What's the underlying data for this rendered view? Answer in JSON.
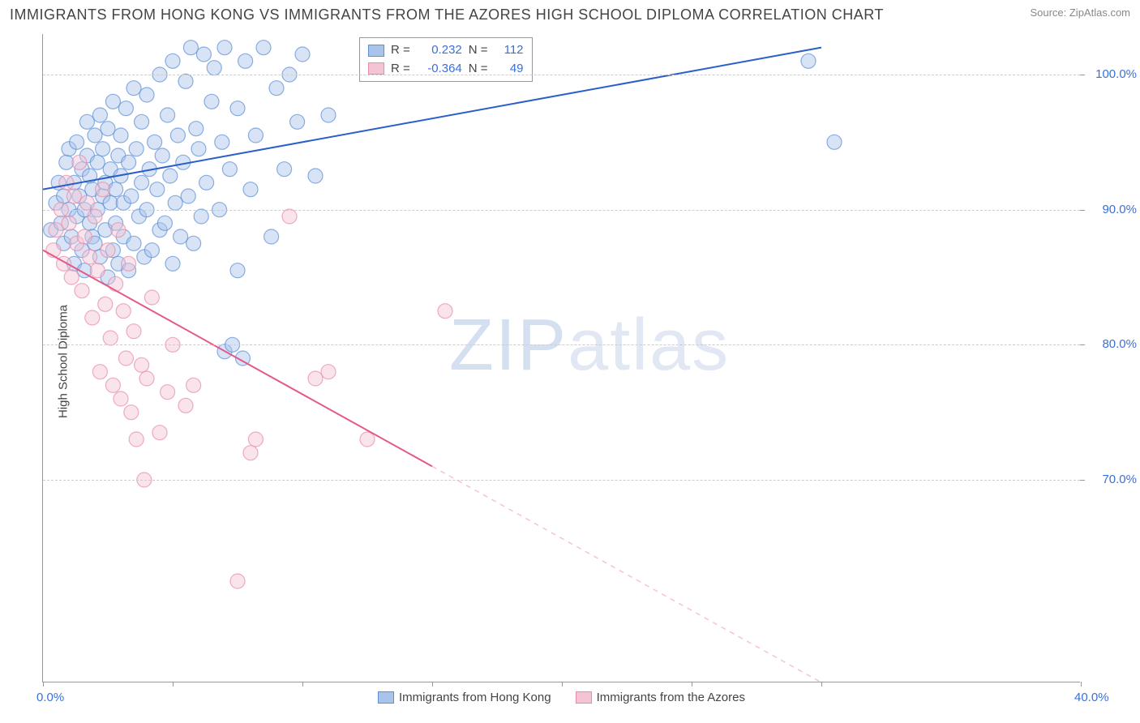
{
  "title": "IMMIGRANTS FROM HONG KONG VS IMMIGRANTS FROM THE AZORES HIGH SCHOOL DIPLOMA CORRELATION CHART",
  "source": "Source: ZipAtlas.com",
  "y_label": "High School Diploma",
  "watermark_1": "ZIP",
  "watermark_2": "atlas",
  "chart": {
    "type": "scatter_with_regression",
    "x_min": 0.0,
    "x_max": 40.0,
    "y_min": 55.0,
    "y_max": 103.0,
    "x_ticks": [
      0.0,
      5.0,
      10.0,
      15.0,
      20.0,
      25.0,
      30.0,
      40.0
    ],
    "x_tick_labels": {
      "0": "0.0%",
      "40": "40.0%"
    },
    "y_ticks": [
      70.0,
      80.0,
      90.0,
      100.0
    ],
    "y_tick_labels": {
      "70": "70.0%",
      "80": "80.0%",
      "90": "90.0%",
      "100": "100.0%"
    },
    "grid_color": "#cccccc",
    "axis_color": "#999999",
    "label_color": "#3b6fd9",
    "background_color": "#ffffff",
    "marker_radius": 9,
    "marker_opacity": 0.45,
    "line_width": 2
  },
  "series": [
    {
      "name": "Immigrants from Hong Kong",
      "color_fill": "#a8c4eb",
      "color_stroke": "#5d8fd6",
      "line_color": "#2a5fc7",
      "r_value": "0.232",
      "n_value": "112",
      "regression": {
        "x1": 0.0,
        "y1": 91.5,
        "x2": 30.0,
        "y2": 102.0,
        "dashed_from": null
      },
      "points": [
        [
          0.3,
          88.5
        ],
        [
          0.5,
          90.5
        ],
        [
          0.6,
          92.0
        ],
        [
          0.7,
          89.0
        ],
        [
          0.8,
          91.0
        ],
        [
          0.8,
          87.5
        ],
        [
          0.9,
          93.5
        ],
        [
          1.0,
          90.0
        ],
        [
          1.0,
          94.5
        ],
        [
          1.1,
          88.0
        ],
        [
          1.2,
          86.0
        ],
        [
          1.2,
          92.0
        ],
        [
          1.3,
          89.5
        ],
        [
          1.3,
          95.0
        ],
        [
          1.4,
          91.0
        ],
        [
          1.5,
          93.0
        ],
        [
          1.5,
          87.0
        ],
        [
          1.6,
          85.5
        ],
        [
          1.6,
          90.0
        ],
        [
          1.7,
          94.0
        ],
        [
          1.7,
          96.5
        ],
        [
          1.8,
          89.0
        ],
        [
          1.8,
          92.5
        ],
        [
          1.9,
          88.0
        ],
        [
          1.9,
          91.5
        ],
        [
          2.0,
          95.5
        ],
        [
          2.0,
          87.5
        ],
        [
          2.1,
          93.5
        ],
        [
          2.1,
          90.0
        ],
        [
          2.2,
          86.5
        ],
        [
          2.2,
          97.0
        ],
        [
          2.3,
          91.0
        ],
        [
          2.3,
          94.5
        ],
        [
          2.4,
          88.5
        ],
        [
          2.4,
          92.0
        ],
        [
          2.5,
          85.0
        ],
        [
          2.5,
          96.0
        ],
        [
          2.6,
          90.5
        ],
        [
          2.6,
          93.0
        ],
        [
          2.7,
          87.0
        ],
        [
          2.7,
          98.0
        ],
        [
          2.8,
          91.5
        ],
        [
          2.8,
          89.0
        ],
        [
          2.9,
          94.0
        ],
        [
          2.9,
          86.0
        ],
        [
          3.0,
          92.5
        ],
        [
          3.0,
          95.5
        ],
        [
          3.1,
          88.0
        ],
        [
          3.1,
          90.5
        ],
        [
          3.2,
          97.5
        ],
        [
          3.3,
          93.5
        ],
        [
          3.3,
          85.5
        ],
        [
          3.4,
          91.0
        ],
        [
          3.5,
          87.5
        ],
        [
          3.5,
          99.0
        ],
        [
          3.6,
          94.5
        ],
        [
          3.7,
          89.5
        ],
        [
          3.8,
          96.5
        ],
        [
          3.8,
          92.0
        ],
        [
          3.9,
          86.5
        ],
        [
          4.0,
          90.0
        ],
        [
          4.0,
          98.5
        ],
        [
          4.1,
          93.0
        ],
        [
          4.2,
          87.0
        ],
        [
          4.3,
          95.0
        ],
        [
          4.4,
          91.5
        ],
        [
          4.5,
          88.5
        ],
        [
          4.5,
          100.0
        ],
        [
          4.6,
          94.0
        ],
        [
          4.7,
          89.0
        ],
        [
          4.8,
          97.0
        ],
        [
          4.9,
          92.5
        ],
        [
          5.0,
          86.0
        ],
        [
          5.0,
          101.0
        ],
        [
          5.1,
          90.5
        ],
        [
          5.2,
          95.5
        ],
        [
          5.3,
          88.0
        ],
        [
          5.4,
          93.5
        ],
        [
          5.5,
          99.5
        ],
        [
          5.6,
          91.0
        ],
        [
          5.7,
          102.0
        ],
        [
          5.8,
          87.5
        ],
        [
          5.9,
          96.0
        ],
        [
          6.0,
          94.5
        ],
        [
          6.1,
          89.5
        ],
        [
          6.2,
          101.5
        ],
        [
          6.3,
          92.0
        ],
        [
          6.5,
          98.0
        ],
        [
          6.6,
          100.5
        ],
        [
          6.8,
          90.0
        ],
        [
          6.9,
          95.0
        ],
        [
          7.0,
          79.5
        ],
        [
          7.0,
          102.0
        ],
        [
          7.2,
          93.0
        ],
        [
          7.3,
          80.0
        ],
        [
          7.5,
          85.5
        ],
        [
          7.5,
          97.5
        ],
        [
          7.7,
          79.0
        ],
        [
          7.8,
          101.0
        ],
        [
          8.0,
          91.5
        ],
        [
          8.2,
          95.5
        ],
        [
          8.5,
          102.0
        ],
        [
          8.8,
          88.0
        ],
        [
          9.0,
          99.0
        ],
        [
          9.3,
          93.0
        ],
        [
          9.5,
          100.0
        ],
        [
          9.8,
          96.5
        ],
        [
          10.0,
          101.5
        ],
        [
          10.5,
          92.5
        ],
        [
          11.0,
          97.0
        ],
        [
          29.5,
          101.0
        ],
        [
          30.5,
          95.0
        ]
      ]
    },
    {
      "name": "Immigrants from the Azores",
      "color_fill": "#f5c4d2",
      "color_stroke": "#e88aa8",
      "line_color": "#e45a87",
      "r_value": "-0.364",
      "n_value": "49",
      "regression": {
        "x1": 0.0,
        "y1": 87.0,
        "x2": 30.0,
        "y2": 55.0,
        "dashed_from": 15.0
      },
      "points": [
        [
          0.4,
          87.0
        ],
        [
          0.5,
          88.5
        ],
        [
          0.7,
          90.0
        ],
        [
          0.8,
          86.0
        ],
        [
          0.9,
          92.0
        ],
        [
          1.0,
          89.0
        ],
        [
          1.1,
          85.0
        ],
        [
          1.2,
          91.0
        ],
        [
          1.3,
          87.5
        ],
        [
          1.4,
          93.5
        ],
        [
          1.5,
          84.0
        ],
        [
          1.6,
          88.0
        ],
        [
          1.7,
          90.5
        ],
        [
          1.8,
          86.5
        ],
        [
          1.9,
          82.0
        ],
        [
          2.0,
          89.5
        ],
        [
          2.1,
          85.5
        ],
        [
          2.2,
          78.0
        ],
        [
          2.3,
          91.5
        ],
        [
          2.4,
          83.0
        ],
        [
          2.5,
          87.0
        ],
        [
          2.6,
          80.5
        ],
        [
          2.7,
          77.0
        ],
        [
          2.8,
          84.5
        ],
        [
          2.9,
          88.5
        ],
        [
          3.0,
          76.0
        ],
        [
          3.1,
          82.5
        ],
        [
          3.2,
          79.0
        ],
        [
          3.3,
          86.0
        ],
        [
          3.4,
          75.0
        ],
        [
          3.5,
          81.0
        ],
        [
          3.6,
          73.0
        ],
        [
          3.8,
          78.5
        ],
        [
          3.9,
          70.0
        ],
        [
          4.0,
          77.5
        ],
        [
          4.2,
          83.5
        ],
        [
          4.5,
          73.5
        ],
        [
          4.8,
          76.5
        ],
        [
          5.0,
          80.0
        ],
        [
          5.5,
          75.5
        ],
        [
          5.8,
          77.0
        ],
        [
          7.5,
          62.5
        ],
        [
          8.0,
          72.0
        ],
        [
          8.2,
          73.0
        ],
        [
          9.5,
          89.5
        ],
        [
          10.5,
          77.5
        ],
        [
          11.0,
          78.0
        ],
        [
          12.5,
          73.0
        ],
        [
          15.5,
          82.5
        ]
      ]
    }
  ],
  "legend_top": {
    "r_label": "R =",
    "n_label": "N ="
  },
  "bottom_legend": {
    "label_1": "Immigrants from Hong Kong",
    "label_2": "Immigrants from the Azores"
  }
}
